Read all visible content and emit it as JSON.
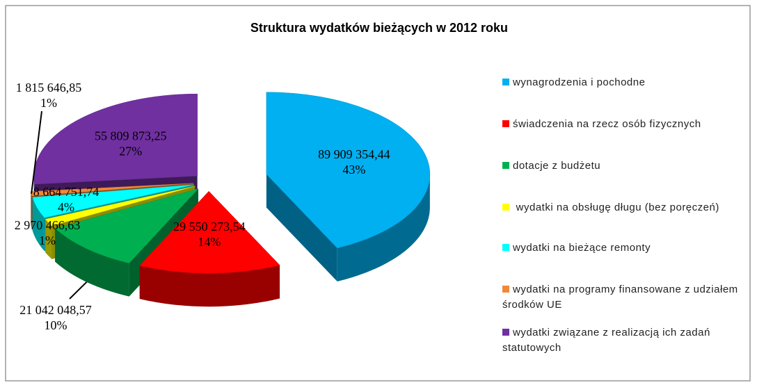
{
  "chart_data": {
    "type": "pie",
    "title": "Struktura wydatków bieżących w 2012 roku",
    "categories": [
      "wynagrodzenia i pochodne",
      "świadczenia na rzecz osób fizycznych",
      "dotacje z budżetu",
      " wydatki na obsługę długu (bez poręczeń)",
      "wydatki na bieżące remonty",
      "wydatki na programy finansowane z udziałem środków UE",
      "wydatki związane z realizacją ich zadań statutowych"
    ],
    "values": [
      89909354.44,
      29550273.54,
      21042048.57,
      2970466.63,
      8664751.74,
      1815646.85,
      55809873.25
    ],
    "value_labels": [
      "89 909 354,44",
      "29 550 273,54",
      "21 042 048,57",
      "2 970 466,63",
      "8 664 751,74",
      "1 815 646,85",
      "55 809 873,25"
    ],
    "percentages": [
      43,
      14,
      10,
      1,
      4,
      1,
      27
    ],
    "percentage_labels": [
      "43%",
      "14%",
      "10%",
      "1%",
      "4%",
      "1%",
      "27%"
    ],
    "colors": [
      "#00b0f0",
      "#ff0000",
      "#00b050",
      "#ffff00",
      "#00ffff",
      "#f0883a",
      "#7030a0"
    ],
    "legend": "right"
  }
}
